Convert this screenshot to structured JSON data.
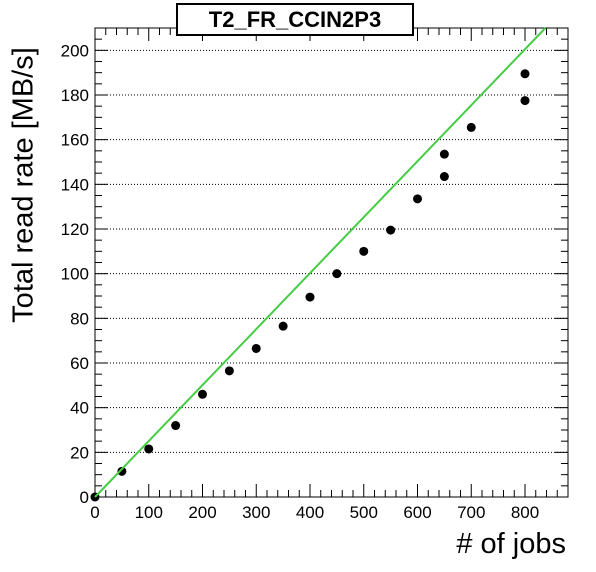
{
  "chart_data": {
    "type": "scatter",
    "title": "T2_FR_CCIN2P3",
    "xlabel": "# of jobs",
    "ylabel": "Total read rate [MB/s]",
    "xlim": [
      0,
      880
    ],
    "ylim": [
      0,
      210
    ],
    "x_ticks": [
      "0",
      "100",
      "200",
      "300",
      "400",
      "500",
      "600",
      "700",
      "800"
    ],
    "y_ticks": [
      "0",
      "20",
      "40",
      "60",
      "80",
      "100",
      "120",
      "140",
      "160",
      "180",
      "200"
    ],
    "grid": "horizontal-dotted",
    "series": [
      {
        "kind": "points",
        "color": "#000000",
        "points": [
          {
            "x": 0,
            "y": 0
          },
          {
            "x": 50,
            "y": 11.5
          },
          {
            "x": 100,
            "y": 21.5
          },
          {
            "x": 150,
            "y": 32
          },
          {
            "x": 200,
            "y": 46
          },
          {
            "x": 250,
            "y": 56.5
          },
          {
            "x": 300,
            "y": 66.5
          },
          {
            "x": 350,
            "y": 76.5
          },
          {
            "x": 400,
            "y": 89.5
          },
          {
            "x": 450,
            "y": 100
          },
          {
            "x": 500,
            "y": 110
          },
          {
            "x": 550,
            "y": 119.5
          },
          {
            "x": 600,
            "y": 133.5
          },
          {
            "x": 650,
            "y": 143.5
          },
          {
            "x": 650,
            "y": 153.5
          },
          {
            "x": 700,
            "y": 165.5
          },
          {
            "x": 800,
            "y": 177.5
          },
          {
            "x": 800,
            "y": 189.5
          }
        ]
      },
      {
        "kind": "line",
        "color": "#44cc44",
        "points": [
          {
            "x": 0,
            "y": 0
          },
          {
            "x": 838,
            "y": 210
          }
        ]
      }
    ]
  }
}
